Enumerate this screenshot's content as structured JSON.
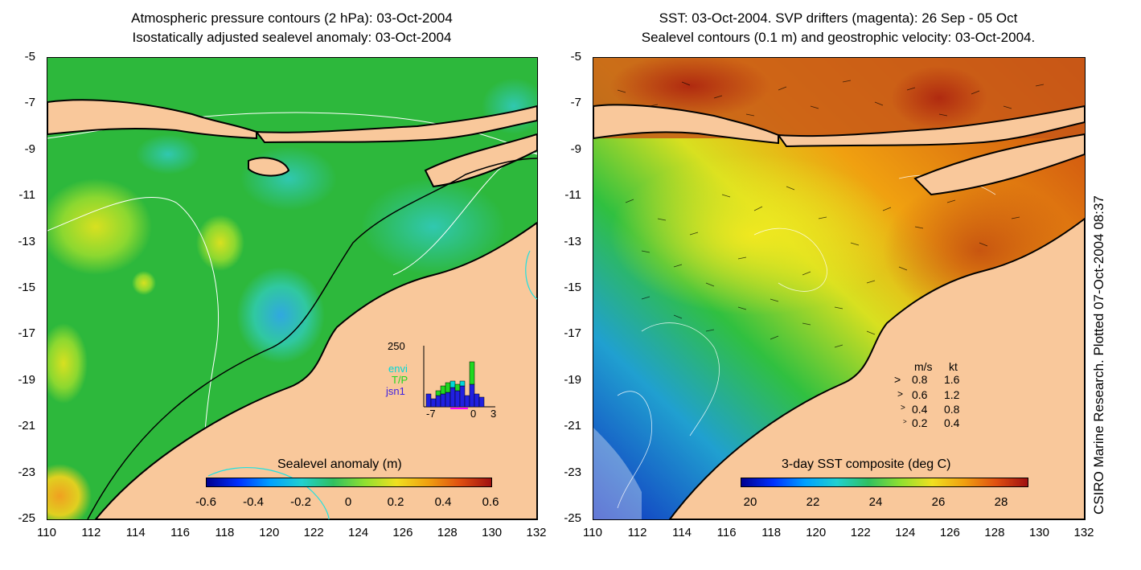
{
  "left": {
    "title1": "Atmospheric pressure contours (2 hPa): 03-Oct-2004",
    "title2": "Isostatically adjusted sealevel anomaly: 03-Oct-2004",
    "colorbar_title": "Sealevel anomaly (m)",
    "colorbar_ticks": [
      "-0.6",
      "-0.4",
      "-0.2",
      "0",
      "0.2",
      "0.4",
      "0.6"
    ],
    "inset": {
      "top_value": "250",
      "series": [
        "envi",
        "T/P",
        "jsn1"
      ],
      "series_colors": [
        "#00d8d8",
        "#20d820",
        "#4020e0"
      ],
      "x_ticks": [
        "-7",
        "0",
        "3"
      ]
    }
  },
  "right": {
    "title1": "SST: 03-Oct-2004. SVP drifters (magenta): 26 Sep - 05 Oct",
    "title2": "Sealevel contours (0.1 m) and geostrophic velocity: 03-Oct-2004.",
    "colorbar_title": "3-day SST composite (deg C)",
    "colorbar_ticks": [
      "20",
      "22",
      "24",
      "26",
      "28"
    ],
    "velocity_legend": {
      "header_ms": "m/s",
      "header_kt": "kt",
      "rows": [
        {
          "ms": "0.8",
          "kt": "1.6"
        },
        {
          "ms": "0.6",
          "kt": "1.2"
        },
        {
          "ms": "0.4",
          "kt": "0.8"
        },
        {
          "ms": "0.2",
          "kt": "0.4"
        }
      ]
    }
  },
  "axes": {
    "y_ticks": [
      "-5",
      "-7",
      "-9",
      "-11",
      "-13",
      "-15",
      "-17",
      "-19",
      "-21",
      "-23",
      "-25"
    ],
    "x_ticks": [
      "110",
      "112",
      "114",
      "116",
      "118",
      "120",
      "122",
      "124",
      "126",
      "128",
      "130",
      "132"
    ]
  },
  "credit": "CSIRO Marine Research. Plotted 07-Oct-2004 08:37",
  "colors": {
    "land": "#f9c89b",
    "coast": "#000000",
    "sla_base": "#2db83c",
    "sst_warm": "#d8621a"
  }
}
